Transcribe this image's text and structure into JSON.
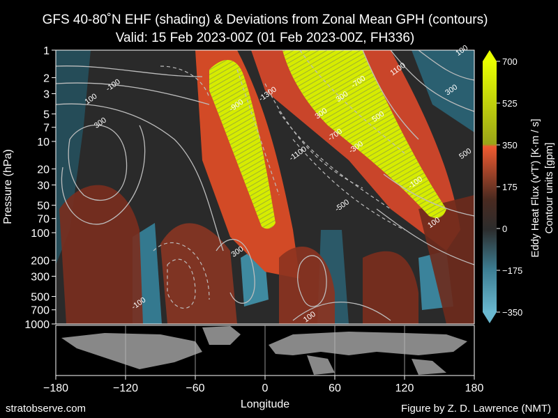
{
  "title_line1": "GFS 40-80˚N EHF (shading) & Deviations from Zonal Mean GPH (contours)",
  "title_line2": "Valid: 15 Feb 2023-00Z  (01 Feb 2023-00Z, FH336)",
  "footer_left": "stratobserve.com",
  "footer_right": "Figure by Z. D. Lawrence (NMT)",
  "colorbar": {
    "label_line1": "Eddy Heat Flux (v'T') [K·m / s]",
    "label_line2": "Contour units [gpm]",
    "ticks": [
      700,
      525,
      350,
      175,
      0,
      -175,
      -350
    ],
    "range": [
      -350,
      700
    ],
    "colors": {
      "negative": "#3a8aa8",
      "neutral": "#2a2a2a",
      "positive": "#e0522a",
      "strong": "#d8f000"
    }
  },
  "chart_data": {
    "type": "heatmap",
    "xlabel": "Longitude",
    "ylabel": "Pressure (hPa)",
    "x_ticks": [
      -180,
      -120,
      -60,
      0,
      60,
      120,
      180
    ],
    "y_ticks": [
      1,
      2,
      3,
      5,
      7,
      10,
      20,
      30,
      50,
      70,
      100,
      200,
      300,
      500,
      700,
      1000
    ],
    "xlim": [
      -180,
      180
    ],
    "ylim": [
      1000,
      1
    ],
    "y_scale": "log",
    "shading": "Eddy heat flux v'T' (K m/s)",
    "contours": "Deviations from zonal mean GPH (gpm)",
    "contour_labels": [
      {
        "lon": -131,
        "p": 2.4,
        "text": "-100"
      },
      {
        "lon": -150,
        "p": 3.4,
        "text": "100"
      },
      {
        "lon": -142,
        "p": 6.2,
        "text": "300"
      },
      {
        "lon": -193,
        "p": 60,
        "text": "500"
      },
      {
        "lon": -24,
        "p": 160,
        "text": "300"
      },
      {
        "lon": -109,
        "p": 590,
        "text": "-100"
      },
      {
        "lon": -25,
        "p": 4.0,
        "text": "-900"
      },
      {
        "lon": 2,
        "p": 3.0,
        "text": "-1300"
      },
      {
        "lon": 48,
        "p": 4.9,
        "text": "300"
      },
      {
        "lon": 66,
        "p": 3.2,
        "text": "300"
      },
      {
        "lon": 80,
        "p": 2.2,
        "text": "-700"
      },
      {
        "lon": 60,
        "p": 8.4,
        "text": "-700"
      },
      {
        "lon": 78,
        "p": 11.5,
        "text": "-300"
      },
      {
        "lon": 97,
        "p": 5.3,
        "text": "500"
      },
      {
        "lon": 28,
        "p": 13.5,
        "text": "-1100"
      },
      {
        "lon": 66,
        "p": 50,
        "text": "-500"
      },
      {
        "lon": 114,
        "p": 1.6,
        "text": "1100"
      },
      {
        "lon": 169,
        "p": 1.0,
        "text": "100"
      },
      {
        "lon": 160,
        "p": 2.7,
        "text": "300"
      },
      {
        "lon": 172,
        "p": 13.5,
        "text": "500"
      },
      {
        "lon": 129,
        "p": 28,
        "text": "-100"
      },
      {
        "lon": 145,
        "p": 77,
        "text": "100"
      },
      {
        "lon": 38,
        "p": 830,
        "text": "100"
      }
    ]
  }
}
